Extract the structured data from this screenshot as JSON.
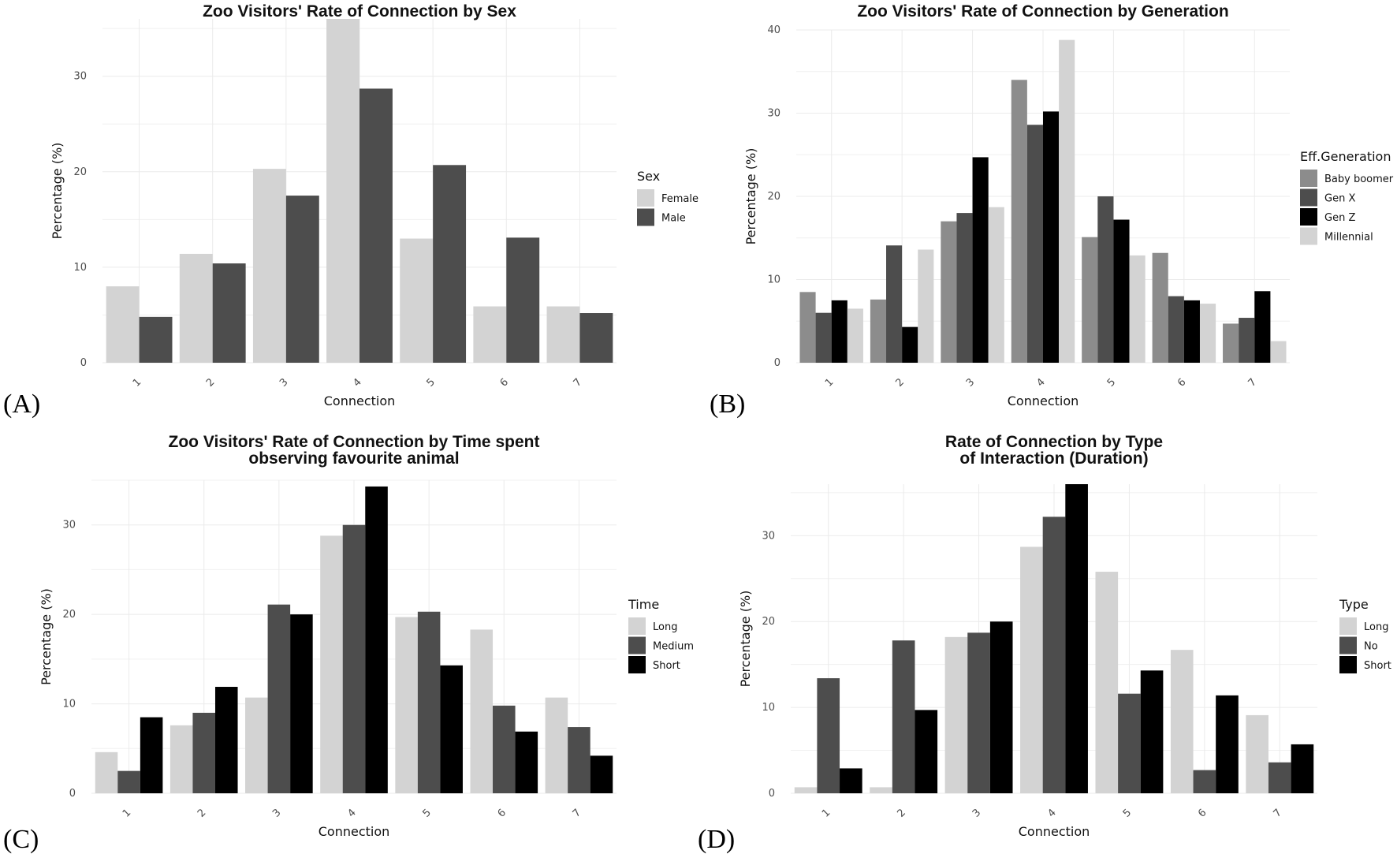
{
  "chart_data": [
    {
      "panel": "(A)",
      "type": "bar",
      "title": [
        "Zoo Visitors' Rate of Connection by Sex"
      ],
      "xlabel": "Connection",
      "ylabel": "Percentage (%)",
      "categories": [
        "1",
        "2",
        "3",
        "4",
        "5",
        "6",
        "7"
      ],
      "ylim": [
        0,
        36
      ],
      "yticks": [
        0,
        10,
        20,
        30
      ],
      "legend_title": "Sex",
      "legend_position": "right",
      "series": [
        {
          "name": "Female",
          "color": "#d3d3d3",
          "values": [
            8.0,
            11.4,
            20.3,
            36.0,
            13.0,
            5.9,
            5.9
          ]
        },
        {
          "name": "Male",
          "color": "#4d4d4d",
          "values": [
            4.8,
            10.4,
            17.5,
            28.7,
            20.7,
            13.1,
            5.2
          ]
        }
      ]
    },
    {
      "panel": "(B)",
      "type": "bar",
      "title": [
        "Zoo Visitors' Rate of Connection by Generation"
      ],
      "xlabel": "Connection",
      "ylabel": "Percentage (%)",
      "categories": [
        "1",
        "2",
        "3",
        "4",
        "5",
        "6",
        "7"
      ],
      "ylim": [
        0,
        40
      ],
      "yticks": [
        0,
        10,
        20,
        30,
        40
      ],
      "legend_title": "Eff.Generation",
      "legend_position": "right",
      "series": [
        {
          "name": "Baby boomer",
          "color": "#8c8c8c",
          "values": [
            8.5,
            7.6,
            17.0,
            34.0,
            15.1,
            13.2,
            4.7
          ]
        },
        {
          "name": "Gen X",
          "color": "#4d4d4d",
          "values": [
            6.0,
            14.1,
            18.0,
            28.6,
            20.0,
            8.0,
            5.4
          ]
        },
        {
          "name": "Gen Z",
          "color": "#000000",
          "values": [
            7.5,
            4.3,
            24.7,
            30.2,
            17.2,
            7.5,
            8.6
          ]
        },
        {
          "name": "Millennial",
          "color": "#d3d3d3",
          "values": [
            6.5,
            13.6,
            18.7,
            38.8,
            12.9,
            7.1,
            2.6
          ]
        }
      ]
    },
    {
      "panel": "(C)",
      "type": "bar",
      "title": [
        "Zoo Visitors' Rate of Connection by Time spent",
        "observing favourite animal"
      ],
      "xlabel": "Connection",
      "ylabel": "Percentage (%)",
      "categories": [
        "1",
        "2",
        "3",
        "4",
        "5",
        "6",
        "7"
      ],
      "ylim": [
        0,
        35
      ],
      "yticks": [
        0,
        10,
        20,
        30
      ],
      "legend_title": "Time",
      "legend_position": "right",
      "series": [
        {
          "name": "Long",
          "color": "#d3d3d3",
          "values": [
            4.6,
            7.6,
            10.7,
            28.8,
            19.7,
            18.3,
            10.7
          ]
        },
        {
          "name": "Medium",
          "color": "#4d4d4d",
          "values": [
            2.5,
            9.0,
            21.1,
            30.0,
            20.3,
            9.8,
            7.4
          ]
        },
        {
          "name": "Short",
          "color": "#000000",
          "values": [
            8.5,
            11.9,
            20.0,
            34.3,
            14.3,
            6.9,
            4.2
          ]
        }
      ]
    },
    {
      "panel": "(D)",
      "type": "bar",
      "title": [
        "Rate of Connection by Type",
        "of Interaction (Duration)"
      ],
      "xlabel": "Connection",
      "ylabel": "Percentage (%)",
      "categories": [
        "1",
        "2",
        "3",
        "4",
        "5",
        "6",
        "7"
      ],
      "ylim": [
        0,
        36
      ],
      "yticks": [
        0,
        10,
        20,
        30
      ],
      "legend_title": "Type",
      "legend_position": "right",
      "series": [
        {
          "name": "Long",
          "color": "#d3d3d3",
          "values": [
            0.7,
            0.7,
            18.2,
            28.7,
            25.8,
            16.7,
            9.1
          ]
        },
        {
          "name": "No",
          "color": "#4d4d4d",
          "values": [
            13.4,
            17.8,
            18.7,
            32.2,
            11.6,
            2.7,
            3.6
          ]
        },
        {
          "name": "Short",
          "color": "#000000",
          "values": [
            2.9,
            9.7,
            20.0,
            36.0,
            14.3,
            11.4,
            5.7
          ]
        }
      ]
    }
  ]
}
